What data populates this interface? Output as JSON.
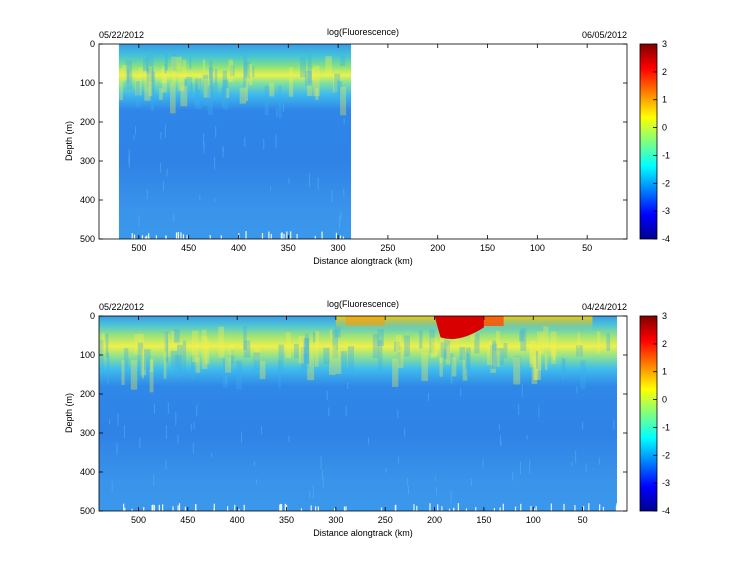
{
  "panels": [
    {
      "title": "log(Fluorescence)",
      "start_date": "05/22/2012",
      "end_date": "06/05/2012",
      "xlabel": "Distance alongtrack (km)",
      "ylabel": "Depth (m)",
      "xticks": [
        "500",
        "450",
        "400",
        "350",
        "300",
        "250",
        "200",
        "150",
        "100",
        "50"
      ],
      "yticks": [
        "0",
        "100",
        "200",
        "300",
        "400",
        "500"
      ],
      "colorbar_ticks": [
        "3",
        "2",
        "1",
        "0",
        "-1",
        "-2",
        "-3",
        "-4"
      ]
    },
    {
      "title": "log(Fluorescence)",
      "start_date": "05/22/2012",
      "end_date": "04/24/2012",
      "xlabel": "Distance alongtrack (km)",
      "ylabel": "Depth (m)",
      "xticks": [
        "500",
        "450",
        "400",
        "350",
        "300",
        "250",
        "200",
        "150",
        "100",
        "50"
      ],
      "yticks": [
        "0",
        "100",
        "200",
        "300",
        "400",
        "500"
      ],
      "colorbar_ticks": [
        "3",
        "2",
        "1",
        "0",
        "-1",
        "-2",
        "-3",
        "-4"
      ]
    }
  ],
  "chart_data": [
    {
      "type": "heatmap",
      "title": "log(Fluorescence)",
      "xlabel": "Distance alongtrack (km)",
      "ylabel": "Depth (m)",
      "xlim": [
        540,
        10
      ],
      "ylim": [
        500,
        0
      ],
      "x_reversed": true,
      "y_reversed": true,
      "colorbar_range": [
        -4,
        3
      ],
      "colormap": "jet",
      "data_x_extent": [
        520,
        287
      ],
      "profiles": [
        {
          "depth": 0,
          "value": -1.4
        },
        {
          "depth": 40,
          "value": -0.8
        },
        {
          "depth": 75,
          "value": 0.1
        },
        {
          "depth": 100,
          "value": -0.5
        },
        {
          "depth": 150,
          "value": -1.5
        },
        {
          "depth": 200,
          "value": -1.9
        },
        {
          "depth": 300,
          "value": -2.0
        },
        {
          "depth": 400,
          "value": -1.9
        },
        {
          "depth": 500,
          "value": -1.8
        }
      ],
      "colorbar_ticks": [
        3,
        2,
        1,
        0,
        -1,
        -2,
        -3,
        -4
      ]
    },
    {
      "type": "heatmap",
      "title": "log(Fluorescence)",
      "xlabel": "Distance alongtrack (km)",
      "ylabel": "Depth (m)",
      "xlim": [
        540,
        5
      ],
      "ylim": [
        500,
        0
      ],
      "x_reversed": true,
      "y_reversed": true,
      "colorbar_range": [
        -4,
        3
      ],
      "colormap": "jet",
      "data_x_extent": [
        540,
        10
      ],
      "profiles": [
        {
          "depth": 0,
          "value": -1.4
        },
        {
          "depth": 40,
          "value": -0.6
        },
        {
          "depth": 75,
          "value": 0.1
        },
        {
          "depth": 110,
          "value": -0.6
        },
        {
          "depth": 160,
          "value": -1.6
        },
        {
          "depth": 250,
          "value": -2.0
        },
        {
          "depth": 400,
          "value": -1.9
        },
        {
          "depth": 500,
          "value": -1.8
        }
      ],
      "surface_maximum": {
        "x_range": [
          200,
          150
        ],
        "depth_range": [
          0,
          60
        ],
        "value": 3
      },
      "colorbar_ticks": [
        3,
        2,
        1,
        0,
        -1,
        -2,
        -3,
        -4
      ]
    }
  ]
}
